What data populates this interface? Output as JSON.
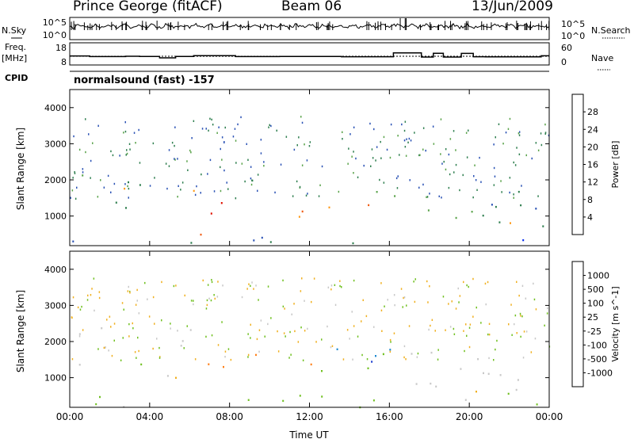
{
  "header": {
    "title": "Prince George (fitACF)",
    "beam": "Beam 06",
    "date": "13/Jun/2009"
  },
  "strip_panels": {
    "nsky": {
      "left_label": "N.Sky",
      "right_label": "N.Search",
      "left_ticks": [
        "10^5",
        "10^0"
      ],
      "right_ticks": [
        "10^5",
        "10^0"
      ]
    },
    "freq": {
      "left_label": "Freq.",
      "left_unit": "[MHz]",
      "right_label": "Nave",
      "left_ticks": [
        "18",
        "8"
      ],
      "right_ticks": [
        "60",
        "0"
      ],
      "freq_mhz_segments": [
        {
          "start_h": 0.0,
          "end_h": 1.0,
          "value": 12.2
        },
        {
          "start_h": 1.0,
          "end_h": 2.8,
          "value": 11.8
        },
        {
          "start_h": 2.8,
          "end_h": 3.5,
          "value": 12.0
        },
        {
          "start_h": 3.5,
          "end_h": 4.5,
          "value": 11.9
        },
        {
          "start_h": 4.5,
          "end_h": 5.3,
          "value": 11.0
        },
        {
          "start_h": 5.3,
          "end_h": 6.2,
          "value": 11.9
        },
        {
          "start_h": 6.2,
          "end_h": 8.3,
          "value": 12.4
        },
        {
          "start_h": 8.3,
          "end_h": 10.5,
          "value": 11.8
        },
        {
          "start_h": 10.5,
          "end_h": 13.6,
          "value": 11.9
        },
        {
          "start_h": 13.6,
          "end_h": 16.2,
          "value": 11.7
        },
        {
          "start_h": 16.2,
          "end_h": 17.6,
          "value": 14.1
        },
        {
          "start_h": 17.6,
          "end_h": 18.2,
          "value": 11.5
        },
        {
          "start_h": 18.2,
          "end_h": 18.7,
          "value": 13.9
        },
        {
          "start_h": 18.7,
          "end_h": 19.6,
          "value": 11.5
        },
        {
          "start_h": 19.6,
          "end_h": 20.2,
          "value": 13.8
        },
        {
          "start_h": 20.2,
          "end_h": 20.8,
          "value": 11.7
        },
        {
          "start_h": 20.8,
          "end_h": 23.6,
          "value": 11.6
        },
        {
          "start_h": 23.6,
          "end_h": 24.0,
          "value": 12.3
        }
      ]
    },
    "cpid": {
      "left_label": "CPID",
      "program": "normalsound (fast)  -157"
    }
  },
  "chart_data": [
    {
      "type": "heatmap",
      "title": "",
      "xlabel": "",
      "ylabel": "Slant Range [km]",
      "xlim": [
        0,
        24
      ],
      "ylim": [
        180,
        4500
      ],
      "x_ticks": [
        0,
        4,
        8,
        12,
        16,
        20,
        24
      ],
      "y_ticks": [
        1000,
        2000,
        3000,
        4000
      ],
      "y_tick_labels": [
        "1000",
        "2000",
        "3000",
        "4000"
      ],
      "colorbar": {
        "label": "Power [dB]",
        "levels": [
          "4",
          "8",
          "12",
          "16",
          "20",
          "24",
          "28"
        ],
        "colors": [
          "#0028f0",
          "#2a52b5",
          "#2f7f4f",
          "#5aa34a",
          "#f0c020",
          "#ff9a18",
          "#f05a10",
          "#e01000"
        ]
      },
      "echo_regions": [
        {
          "t0": 0.0,
          "t1": 3.5,
          "r0": 1000,
          "r1": 2300,
          "value": 10
        },
        {
          "t0": 2.0,
          "t1": 5.0,
          "r0": 1700,
          "r1": 2100,
          "value": 20
        },
        {
          "t0": 4.0,
          "t1": 6.5,
          "r0": 1300,
          "r1": 1800,
          "value": 24
        },
        {
          "t0": 6.3,
          "t1": 9.0,
          "r0": 800,
          "r1": 1600,
          "value": 30
        },
        {
          "t0": 9.0,
          "t1": 12.0,
          "r0": 900,
          "r1": 1500,
          "value": 27
        },
        {
          "t0": 12.0,
          "t1": 15.0,
          "r0": 1000,
          "r1": 1700,
          "value": 22
        },
        {
          "t0": 15.0,
          "t1": 16.5,
          "r0": 1300,
          "r1": 2200,
          "value": 12
        },
        {
          "t0": 5.0,
          "t1": 6.8,
          "r0": 300,
          "r1": 600,
          "value": 28
        },
        {
          "t0": 0.0,
          "t1": 24.0,
          "r0": 250,
          "r1": 500,
          "value": 8
        },
        {
          "t0": 16.5,
          "t1": 24.0,
          "r0": 500,
          "r1": 1700,
          "value": 11
        },
        {
          "t0": 19.0,
          "t1": 22.5,
          "r0": 600,
          "r1": 1000,
          "value": 19
        },
        {
          "t0": 23.0,
          "t1": 24.0,
          "r0": 450,
          "r1": 800,
          "value": 29
        }
      ]
    },
    {
      "type": "heatmap",
      "title": "",
      "xlabel": "Time UT",
      "ylabel": "Slant Range [km]",
      "xlim": [
        0,
        24
      ],
      "ylim": [
        180,
        4500
      ],
      "x_ticks": [
        0,
        4,
        8,
        12,
        16,
        20,
        24
      ],
      "x_tick_labels": [
        "00:00",
        "04:00",
        "08:00",
        "12:00",
        "16:00",
        "20:00",
        "00:00"
      ],
      "y_ticks": [
        1000,
        2000,
        3000,
        4000
      ],
      "y_tick_labels": [
        "1000",
        "2000",
        "3000",
        "4000"
      ],
      "colorbar": {
        "label": "Velocity [m s^-1]",
        "levels": [
          "1000",
          "500",
          "100",
          "25",
          "-25",
          "-100",
          "-500",
          "-1000"
        ],
        "colors": [
          "#2040d0",
          "#1f8ad0",
          "#2f8f4f",
          "#70c020",
          "#c8c8c8",
          "#f0b020",
          "#ff8018",
          "#f04010",
          "#e00000"
        ]
      },
      "echo_regions": [
        {
          "t0": 0.0,
          "t1": 6.2,
          "r0": 1000,
          "r1": 2400,
          "value": 0
        },
        {
          "t0": 6.3,
          "t1": 10.5,
          "r0": 1000,
          "r1": 1700,
          "value": -400
        },
        {
          "t0": 10.5,
          "t1": 13.0,
          "r0": 1100,
          "r1": 1600,
          "value": -200
        },
        {
          "t0": 11.5,
          "t1": 16.2,
          "r0": 1300,
          "r1": 2100,
          "value": 800
        },
        {
          "t0": 8.0,
          "t1": 16.5,
          "r0": 1050,
          "r1": 1300,
          "value": 60
        },
        {
          "t0": 4.0,
          "t1": 4.8,
          "r0": 650,
          "r1": 850,
          "value": -150
        },
        {
          "t0": 5.0,
          "t1": 6.5,
          "r0": 200,
          "r1": 450,
          "value": -150
        },
        {
          "t0": 0.0,
          "t1": 24.0,
          "r0": 200,
          "r1": 650,
          "value": 40
        },
        {
          "t0": 16.5,
          "t1": 24.0,
          "r0": 300,
          "r1": 1800,
          "value": 0
        }
      ]
    }
  ]
}
